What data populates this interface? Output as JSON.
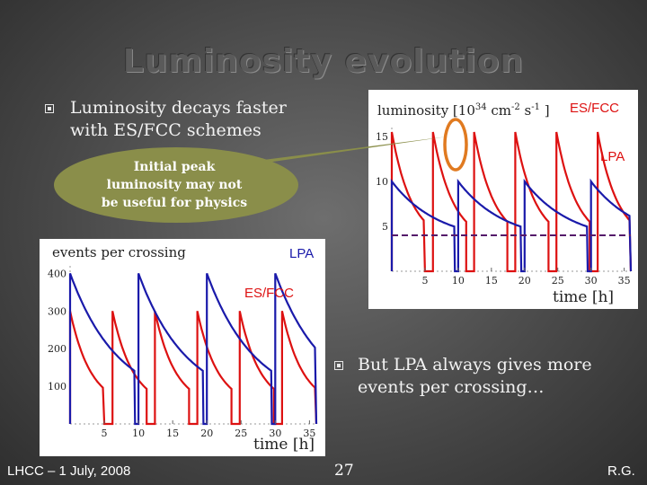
{
  "slide": {
    "title": "Luminosity evolution",
    "bullet1": {
      "line1": "Luminosity decays faster",
      "line2": "with ES/FCC schemes"
    },
    "callout": {
      "line1": "Initial peak",
      "line2": "luminosity may not",
      "line3": "be useful for physics"
    },
    "bullet2": {
      "line1": "But LPA always gives more",
      "line2": "events per crossing…"
    },
    "footer_left": "LHCC – 1 July, 2008",
    "page_number": "27",
    "footer_right": "R.G."
  },
  "colors": {
    "es_fcc": "#dd1111",
    "lpa": "#1a1aaa",
    "callout": "#8a8e4a",
    "highlight": "#e07a20"
  },
  "chart_data": [
    {
      "type": "line",
      "title": "luminosity [10^34 cm^-2 s^-1 ]",
      "title_main": "luminosity [10",
      "title_exp": "34",
      "title_rest": " cm",
      "title_exp2": "-2",
      "title_rest2": " s",
      "title_exp3": "-1",
      "title_end": " ]",
      "xlabel": "time [h]",
      "xlim": [
        0,
        36
      ],
      "ylim": [
        0,
        16
      ],
      "xticks": [
        "5",
        "10",
        "15",
        "20",
        "25",
        "30",
        "35"
      ],
      "yticks": [
        "5",
        "10",
        "15"
      ],
      "series": [
        {
          "name": "ES/FCC",
          "period": 6.2,
          "peak": 15.5,
          "low": 3.2,
          "decay_tau": 3.0,
          "fill_hours": 5.0
        },
        {
          "name": "LPA",
          "period": 10.0,
          "peak": 10.0,
          "low": 3.2,
          "decay_tau": 7.0,
          "fill_hours": 9.5
        }
      ],
      "average_line": 4.0
    },
    {
      "type": "line",
      "title": "events per crossing",
      "xlabel": "time [h]",
      "xlim": [
        0,
        36
      ],
      "ylim": [
        0,
        420
      ],
      "xticks": [
        "5",
        "10",
        "15",
        "20",
        "25",
        "30",
        "35"
      ],
      "yticks": [
        "100",
        "200",
        "300",
        "400"
      ],
      "series": [
        {
          "name": "ES/FCC",
          "period": 6.2,
          "peak": 300,
          "low": 45,
          "decay_tau": 3.0,
          "fill_hours": 5.0
        },
        {
          "name": "LPA",
          "period": 10.0,
          "peak": 400,
          "low": 50,
          "decay_tau": 7.0,
          "fill_hours": 9.5
        }
      ]
    }
  ]
}
